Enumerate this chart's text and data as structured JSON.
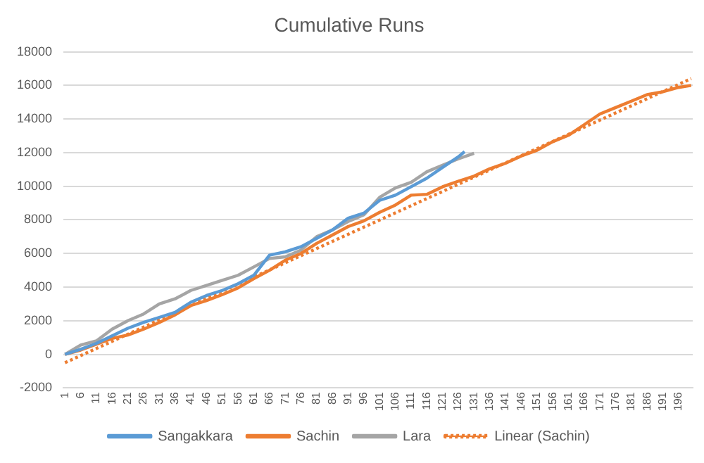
{
  "chart_data": {
    "type": "line",
    "title": "Cumulative Runs",
    "xlim": [
      0.5,
      200.5
    ],
    "xticks": [
      1,
      6,
      11,
      16,
      21,
      26,
      31,
      36,
      41,
      46,
      51,
      56,
      61,
      66,
      71,
      76,
      81,
      86,
      91,
      96,
      101,
      106,
      111,
      116,
      121,
      126,
      131,
      136,
      141,
      146,
      151,
      156,
      161,
      166,
      171,
      176,
      181,
      186,
      191,
      196
    ],
    "ylim": [
      -2000,
      18000
    ],
    "yticks": [
      -2000,
      0,
      2000,
      4000,
      6000,
      8000,
      10000,
      12000,
      14000,
      16000,
      18000
    ],
    "grid": "y",
    "legend": "bottom",
    "marker": "none",
    "series": [
      {
        "name": "Sangakkara",
        "color": "#5b9bd5",
        "x": [
          1,
          6,
          11,
          16,
          21,
          26,
          31,
          36,
          41,
          46,
          51,
          56,
          61,
          66,
          71,
          76,
          81,
          86,
          91,
          96,
          101,
          106,
          111,
          116,
          121,
          126,
          128
        ],
        "values": [
          0,
          300,
          650,
          1100,
          1550,
          1900,
          2200,
          2500,
          3100,
          3500,
          3800,
          4200,
          4700,
          5900,
          6100,
          6400,
          6900,
          7400,
          8100,
          8400,
          9160,
          9470,
          9970,
          10480,
          11120,
          11750,
          12060
        ]
      },
      {
        "name": "Sachin",
        "color": "#ed7d31",
        "x": [
          1,
          6,
          11,
          16,
          21,
          26,
          31,
          36,
          41,
          46,
          51,
          56,
          61,
          66,
          71,
          76,
          81,
          86,
          91,
          96,
          101,
          106,
          111,
          116,
          121,
          126,
          131,
          136,
          141,
          146,
          151,
          156,
          161,
          166,
          171,
          176,
          181,
          186,
          191,
          196,
          200
        ],
        "values": [
          0,
          250,
          600,
          950,
          1150,
          1500,
          1900,
          2350,
          2900,
          3200,
          3550,
          3950,
          4500,
          5000,
          5600,
          6000,
          6600,
          7100,
          7600,
          7940,
          8450,
          8880,
          9470,
          9520,
          9970,
          10300,
          10600,
          11040,
          11370,
          11800,
          12140,
          12650,
          13030,
          13660,
          14300,
          14680,
          15060,
          15450,
          15620,
          15880,
          16000
        ]
      },
      {
        "name": "Lara",
        "color": "#a5a5a5",
        "x": [
          1,
          6,
          11,
          16,
          21,
          26,
          31,
          36,
          41,
          46,
          51,
          56,
          61,
          66,
          71,
          76,
          81,
          86,
          91,
          96,
          101,
          106,
          111,
          116,
          121,
          126,
          131
        ],
        "values": [
          0,
          550,
          800,
          1500,
          2000,
          2400,
          3000,
          3300,
          3800,
          4100,
          4400,
          4700,
          5200,
          5700,
          5800,
          6200,
          7000,
          7400,
          7900,
          8300,
          9340,
          9900,
          10230,
          10860,
          11250,
          11630,
          11960
        ]
      },
      {
        "name": "Linear (Sachin)",
        "color": "#ed7d31",
        "line_style": "dotted",
        "x": [
          1,
          200
        ],
        "values": [
          -500,
          16400
        ]
      }
    ]
  }
}
